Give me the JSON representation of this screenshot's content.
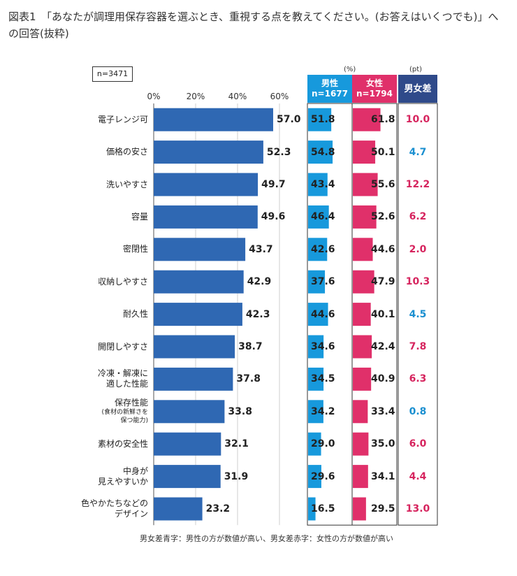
{
  "title": "図表1　「あなたが調理用保存容器を選ぶとき、重視する点を教えてください。(お答えはいくつでも)」への回答(抜粋)",
  "sample": "n=3471",
  "pct_unit": "(%)",
  "pt_unit": "(pt)",
  "headers": {
    "male_label": "男性",
    "male_n": "n=1677",
    "female_label": "女性",
    "female_n": "n=1794",
    "diff_label": "男女差"
  },
  "footnote": "男女差青字：男性の方が数値が高い、男女差赤字：女性の方が数値が高い",
  "colors": {
    "total_bar": "#2f68b3",
    "male_bar": "#1799dc",
    "female_bar": "#e0306a",
    "male_higher_text": "#1a8fd0",
    "female_higher_text": "#d6245e"
  },
  "chart_data": {
    "type": "bar",
    "orientation": "horizontal",
    "x_ticks": [
      "0%",
      "20%",
      "40%",
      "60%"
    ],
    "xlim": [
      0,
      60
    ],
    "grid": true,
    "categories": [
      {
        "label": "電子レンジ可",
        "sub": ""
      },
      {
        "label": "価格の安さ",
        "sub": ""
      },
      {
        "label": "洗いやすさ",
        "sub": ""
      },
      {
        "label": "容量",
        "sub": ""
      },
      {
        "label": "密閉性",
        "sub": ""
      },
      {
        "label": "収納しやすさ",
        "sub": ""
      },
      {
        "label": "耐久性",
        "sub": ""
      },
      {
        "label": "開閉しやすさ",
        "sub": ""
      },
      {
        "label": "冷凍・解凍に\n適した性能",
        "sub": ""
      },
      {
        "label": "保存性能",
        "sub": "(食材の新鮮さを\n保つ能力)"
      },
      {
        "label": "素材の安全性",
        "sub": ""
      },
      {
        "label": "中身が\n見えやすいか",
        "sub": ""
      },
      {
        "label": "色やかたちなどの\nデザイン",
        "sub": ""
      }
    ],
    "series": [
      {
        "name": "",
        "values": [
          57.0,
          52.3,
          49.7,
          49.6,
          43.7,
          42.9,
          42.3,
          38.7,
          37.8,
          33.8,
          32.1,
          31.9,
          23.2
        ]
      },
      {
        "name": "男性",
        "values": [
          51.8,
          54.8,
          43.4,
          46.4,
          42.6,
          37.6,
          44.6,
          34.6,
          34.5,
          34.2,
          29.0,
          29.6,
          16.5
        ]
      },
      {
        "name": "女性",
        "values": [
          61.8,
          50.1,
          55.6,
          52.6,
          44.6,
          47.9,
          40.1,
          42.4,
          40.9,
          33.4,
          35.0,
          34.1,
          29.5
        ]
      }
    ],
    "diff_pt": [
      10.0,
      4.7,
      12.2,
      6.2,
      2.0,
      10.3,
      4.5,
      7.8,
      6.3,
      0.8,
      6.0,
      4.4,
      13.0
    ],
    "diff_higher": [
      "female",
      "male",
      "female",
      "female",
      "female",
      "female",
      "male",
      "female",
      "female",
      "male",
      "female",
      "female",
      "female"
    ]
  }
}
